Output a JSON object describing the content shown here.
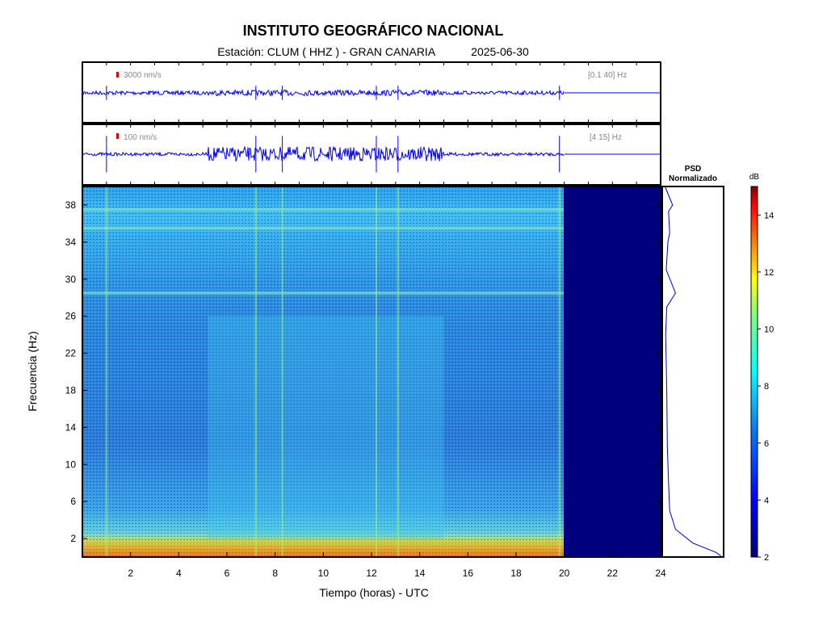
{
  "header": {
    "title": "INSTITUTO GEOGRÁFICO NACIONAL",
    "station_label": "Estación:",
    "station": "CLUM ( HHZ ) - GRAN CANARIA",
    "date": "2025-06-30"
  },
  "traces": [
    {
      "scale_label": "3000 nm/s",
      "band_label": "[0.1 40] Hz"
    },
    {
      "scale_label": "100 nm/s",
      "band_label": "[4 15] Hz"
    }
  ],
  "psd": {
    "title_line1": "PSD",
    "title_line2": "Normalizado"
  },
  "colorbar": {
    "unit": "dB",
    "range": [
      2,
      15
    ],
    "ticks": [
      "2",
      "4",
      "6",
      "8",
      "10",
      "12",
      "14"
    ]
  },
  "colors": {
    "trace": "#0000ff",
    "frame": "#000000",
    "no_data": "#00007f",
    "marker": "#e00000"
  },
  "chart_data": {
    "type": "heatmap",
    "xlabel": "Tiempo (horas) - UTC",
    "ylabel": "Frecuencia  (Hz)",
    "xlim": [
      0,
      24
    ],
    "ylim": [
      0,
      40
    ],
    "x_ticks": [
      "2",
      "4",
      "6",
      "8",
      "10",
      "12",
      "14",
      "16",
      "18",
      "20",
      "22",
      "24"
    ],
    "y_ticks": [
      "2",
      "6",
      "10",
      "14",
      "18",
      "22",
      "26",
      "30",
      "34",
      "38"
    ],
    "data_end_hour": 20,
    "background_level_db": 5,
    "low_freq_band": {
      "from_hz": 0,
      "to_hz": 2,
      "level_db": 11
    },
    "spectral_lines_hz": [
      28.5,
      35.5,
      37.5
    ],
    "active_hours": [
      5.2,
      15
    ],
    "transient_hours": [
      1,
      7.2,
      8.3,
      12.2,
      13.1,
      19.8
    ],
    "psd_profile": [
      {
        "f": 40,
        "v": 0.02
      },
      {
        "f": 38,
        "v": 0.15
      },
      {
        "f": 37.3,
        "v": 0.08
      },
      {
        "f": 35,
        "v": 0.1
      },
      {
        "f": 34,
        "v": 0.07
      },
      {
        "f": 31,
        "v": 0.04
      },
      {
        "f": 28.5,
        "v": 0.2
      },
      {
        "f": 27,
        "v": 0.05
      },
      {
        "f": 24,
        "v": 0.03
      },
      {
        "f": 18,
        "v": 0.05
      },
      {
        "f": 12,
        "v": 0.06
      },
      {
        "f": 8,
        "v": 0.08
      },
      {
        "f": 5,
        "v": 0.1
      },
      {
        "f": 3,
        "v": 0.2
      },
      {
        "f": 1.5,
        "v": 0.5
      },
      {
        "f": 0.5,
        "v": 0.9
      },
      {
        "f": 0,
        "v": 1.0
      }
    ]
  }
}
